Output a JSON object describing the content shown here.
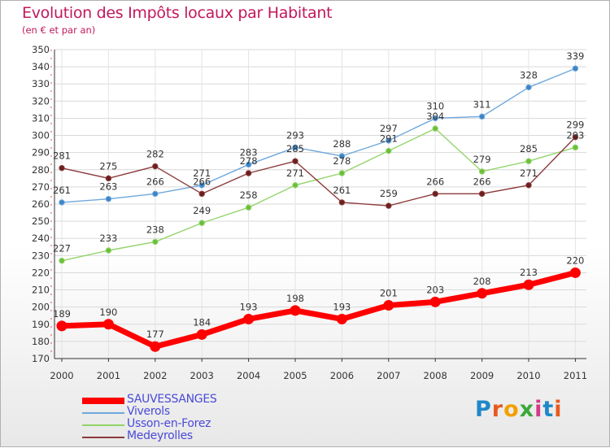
{
  "header": {
    "title": "Evolution des Impôts locaux par Habitant",
    "subtitle": "(en € et par an)"
  },
  "logo": {
    "text": "Proxiti",
    "colors": [
      "#1e88c8",
      "#e65a1e",
      "#f2a000",
      "#3aa83a",
      "#d43a8a",
      "#1e88c8",
      "#e65a1e"
    ]
  },
  "chart_data": {
    "type": "line",
    "x": [
      "2000",
      "2001",
      "2002",
      "2003",
      "2004",
      "2005",
      "2006",
      "2007",
      "2008",
      "2009",
      "2010",
      "2011"
    ],
    "ylim": [
      170,
      350
    ],
    "yticks": [
      170,
      180,
      190,
      200,
      210,
      220,
      230,
      240,
      250,
      260,
      270,
      280,
      290,
      300,
      310,
      320,
      330,
      340,
      350
    ],
    "grid": true,
    "legend": "bottom-left",
    "series": [
      {
        "name": "SAUVESSANGES",
        "color": "#ff0000",
        "values": [
          189,
          190,
          177,
          184,
          193,
          198,
          193,
          201,
          203,
          208,
          213,
          220
        ]
      },
      {
        "name": "Viverols",
        "color": "#6fa8dc",
        "point_color": "#3d85c6",
        "values": [
          261,
          263,
          266,
          271,
          283,
          293,
          288,
          297,
          310,
          311,
          328,
          339
        ]
      },
      {
        "name": "Usson-en-Forez",
        "color": "#93d46a",
        "point_color": "#6abf3a",
        "values": [
          227,
          233,
          238,
          249,
          258,
          271,
          278,
          291,
          304,
          279,
          285,
          293
        ]
      },
      {
        "name": "Medeyrolles",
        "color": "#8c3b3b",
        "point_color": "#6b1f1f",
        "values": [
          281,
          275,
          282,
          266,
          278,
          285,
          261,
          259,
          266,
          266,
          271,
          299
        ]
      }
    ]
  }
}
